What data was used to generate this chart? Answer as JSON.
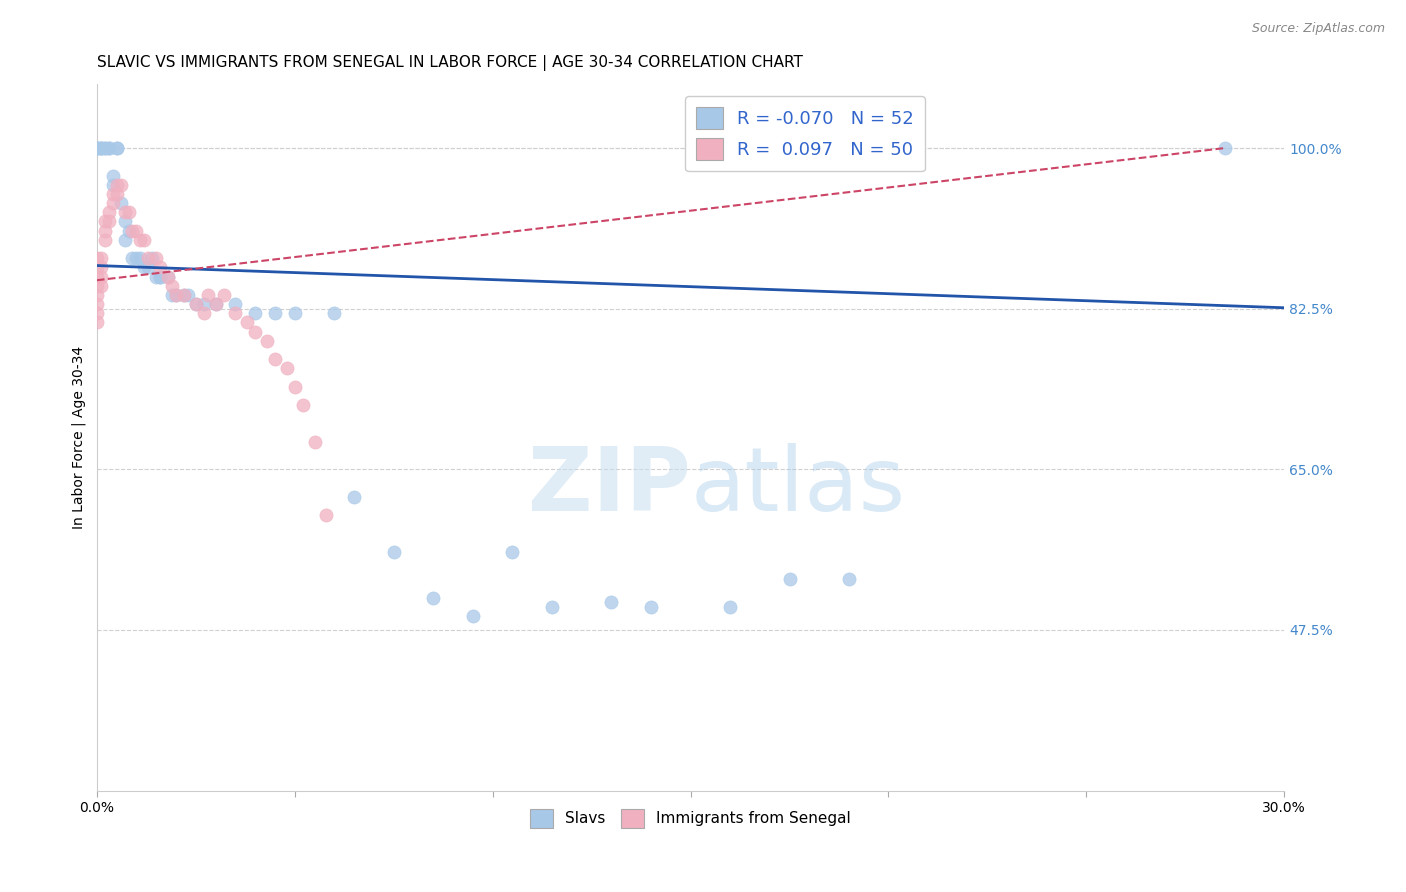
{
  "title": "SLAVIC VS IMMIGRANTS FROM SENEGAL IN LABOR FORCE | AGE 30-34 CORRELATION CHART",
  "source": "Source: ZipAtlas.com",
  "ylabel": "In Labor Force | Age 30-34",
  "watermark_zip": "ZIP",
  "watermark_atlas": "atlas",
  "xmin": 0.0,
  "xmax": 0.3,
  "ymin": 0.3,
  "ymax": 1.07,
  "right_ytick_labels": [
    "100.0%",
    "82.5%",
    "65.0%",
    "47.5%"
  ],
  "right_ytick_positions": [
    1.0,
    0.825,
    0.65,
    0.475
  ],
  "xtick_positions": [
    0.0,
    0.05,
    0.1,
    0.15,
    0.2,
    0.25,
    0.3
  ],
  "xtick_labels": [
    "0.0%",
    "",
    "",
    "",
    "",
    "",
    "30.0%"
  ],
  "legend_blue_r": "-0.070",
  "legend_blue_n": "52",
  "legend_pink_r": "0.097",
  "legend_pink_n": "50",
  "slavs_x": [
    0.0,
    0.0,
    0.0,
    0.001,
    0.001,
    0.001,
    0.002,
    0.002,
    0.003,
    0.003,
    0.004,
    0.004,
    0.005,
    0.005,
    0.006,
    0.007,
    0.007,
    0.008,
    0.009,
    0.01,
    0.011,
    0.012,
    0.013,
    0.014,
    0.015,
    0.016,
    0.016,
    0.018,
    0.019,
    0.02,
    0.022,
    0.023,
    0.025,
    0.027,
    0.03,
    0.035,
    0.04,
    0.045,
    0.05,
    0.06,
    0.065,
    0.075,
    0.085,
    0.095,
    0.105,
    0.115,
    0.13,
    0.14,
    0.16,
    0.175,
    0.19,
    0.285
  ],
  "slavs_y": [
    1.0,
    1.0,
    1.0,
    1.0,
    1.0,
    1.0,
    1.0,
    1.0,
    1.0,
    1.0,
    0.96,
    0.97,
    1.0,
    1.0,
    0.94,
    0.92,
    0.9,
    0.91,
    0.88,
    0.88,
    0.88,
    0.87,
    0.87,
    0.88,
    0.86,
    0.86,
    0.86,
    0.86,
    0.84,
    0.84,
    0.84,
    0.84,
    0.83,
    0.83,
    0.83,
    0.83,
    0.82,
    0.82,
    0.82,
    0.82,
    0.62,
    0.56,
    0.51,
    0.49,
    0.56,
    0.5,
    0.505,
    0.5,
    0.5,
    0.53,
    0.53,
    1.0
  ],
  "senegal_x": [
    0.0,
    0.0,
    0.0,
    0.0,
    0.0,
    0.0,
    0.0,
    0.0,
    0.001,
    0.001,
    0.001,
    0.001,
    0.002,
    0.002,
    0.002,
    0.003,
    0.003,
    0.004,
    0.004,
    0.005,
    0.005,
    0.006,
    0.007,
    0.008,
    0.009,
    0.01,
    0.011,
    0.012,
    0.013,
    0.015,
    0.016,
    0.018,
    0.019,
    0.02,
    0.022,
    0.025,
    0.027,
    0.028,
    0.03,
    0.032,
    0.035,
    0.038,
    0.04,
    0.043,
    0.045,
    0.048,
    0.05,
    0.052,
    0.055,
    0.058
  ],
  "senegal_y": [
    0.88,
    0.87,
    0.86,
    0.85,
    0.84,
    0.83,
    0.82,
    0.81,
    0.88,
    0.87,
    0.86,
    0.85,
    0.92,
    0.91,
    0.9,
    0.93,
    0.92,
    0.95,
    0.94,
    0.96,
    0.95,
    0.96,
    0.93,
    0.93,
    0.91,
    0.91,
    0.9,
    0.9,
    0.88,
    0.88,
    0.87,
    0.86,
    0.85,
    0.84,
    0.84,
    0.83,
    0.82,
    0.84,
    0.83,
    0.84,
    0.82,
    0.81,
    0.8,
    0.79,
    0.77,
    0.76,
    0.74,
    0.72,
    0.68,
    0.6
  ],
  "blue_line_x": [
    0.0,
    0.3
  ],
  "blue_line_y": [
    0.872,
    0.826
  ],
  "pink_line_x": [
    0.0,
    0.285
  ],
  "pink_line_y": [
    0.856,
    1.0
  ],
  "blue_color": "#a8c8e8",
  "pink_color": "#f0b0c0",
  "blue_line_color": "#2255aa",
  "pink_line_color": "#cc4466",
  "background_color": "#ffffff",
  "grid_color": "#d0d0d0",
  "title_fontsize": 11,
  "axis_label_fontsize": 10,
  "tick_fontsize": 10,
  "right_tick_color": "#4488cc",
  "marker_size": 90
}
